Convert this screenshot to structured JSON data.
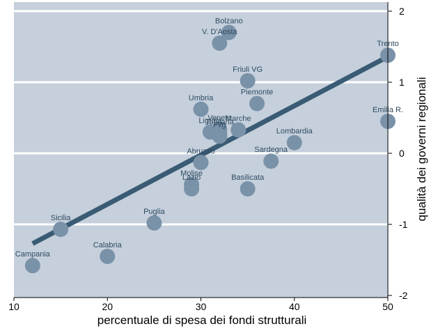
{
  "chart_data": {
    "type": "scatter",
    "xlabel": "percentuale di spesa dei fondi strutturali",
    "ylabel": "qualità dei governi regionali",
    "xlim": [
      10,
      50
    ],
    "ylim": [
      -2,
      2
    ],
    "x_ticks": [
      "10",
      "20",
      "30",
      "40",
      "50"
    ],
    "y_ticks": [
      "-2",
      "-1",
      "0",
      "1",
      "2"
    ],
    "grid": "horizontal",
    "colors": {
      "plot_bg": "#c5d0dc",
      "marker": "#7a92a8",
      "fit_line": "#3a5b74",
      "label": "#2e4a60",
      "grid": "#ffffff"
    },
    "points": [
      {
        "label": "Bolzano",
        "x": 33.0,
        "y": 1.7
      },
      {
        "label": "V. D'Aosta",
        "x": 32.0,
        "y": 1.55
      },
      {
        "label": "Trento",
        "x": 50.0,
        "y": 1.38
      },
      {
        "label": "Friuli VG",
        "x": 35.0,
        "y": 1.02
      },
      {
        "label": "Piemonte",
        "x": 36.0,
        "y": 0.7
      },
      {
        "label": "Umbria",
        "x": 30.0,
        "y": 0.62
      },
      {
        "label": "Emilia R.",
        "x": 50.0,
        "y": 0.45
      },
      {
        "label": "Veneto",
        "x": 32.0,
        "y": 0.34
      },
      {
        "label": "Marche",
        "x": 34.0,
        "y": 0.33
      },
      {
        "label": "Liguria",
        "x": 31.0,
        "y": 0.3
      },
      {
        "label": "Toscana",
        "x": 32.0,
        "y": 0.28
      },
      {
        "label": "Fvg",
        "x": 32.0,
        "y": 0.24
      },
      {
        "label": "Lombardia",
        "x": 40.0,
        "y": 0.15
      },
      {
        "label": "Sardegna",
        "x": 37.5,
        "y": -0.11
      },
      {
        "label": "Abruzzo",
        "x": 30.0,
        "y": -0.13
      },
      {
        "label": "Molise",
        "x": 29.0,
        "y": -0.44
      },
      {
        "label": "Lazio",
        "x": 29.0,
        "y": -0.5
      },
      {
        "label": "Basilicata",
        "x": 35.0,
        "y": -0.5
      },
      {
        "label": "Puglia",
        "x": 25.0,
        "y": -0.98
      },
      {
        "label": "Sicilia",
        "x": 15.0,
        "y": -1.07
      },
      {
        "label": "Calabria",
        "x": 20.0,
        "y": -1.45
      },
      {
        "label": "Campania",
        "x": 12.0,
        "y": -1.58
      }
    ],
    "fit_line": {
      "x": [
        12,
        50
      ],
      "y": [
        -1.27,
        1.36
      ]
    }
  }
}
